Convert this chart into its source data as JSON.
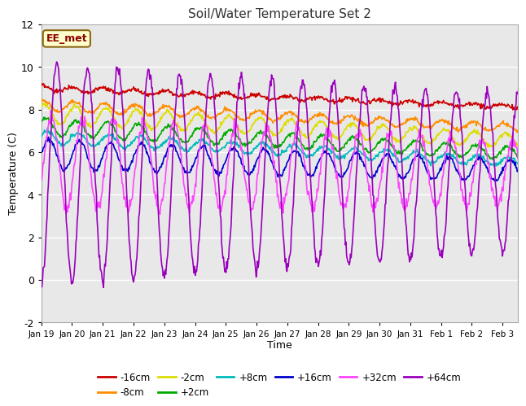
{
  "title": "Soil/Water Temperature Set 2",
  "xlabel": "Time",
  "ylabel": "Temperature (C)",
  "ylim": [
    -2,
    12
  ],
  "annotation_text": "EE_met",
  "annotation_box_color": "#ffffcc",
  "annotation_text_color": "#8b0000",
  "annotation_border_color": "#8b6914",
  "fig_facecolor": "#ffffff",
  "plot_facecolor": "#e8e8e8",
  "grid_color": "#ffffff",
  "series": [
    {
      "label": "-16cm",
      "color": "#cc0000",
      "base": 9.0,
      "amplitude": 0.12,
      "phase": 1.57,
      "trend": -0.9,
      "lw": 1.2
    },
    {
      "label": "-8cm",
      "color": "#ff8c00",
      "base": 8.2,
      "amplitude": 0.25,
      "phase": 1.2,
      "trend": -1.1,
      "lw": 1.2
    },
    {
      "label": "-2cm",
      "color": "#dddd00",
      "base": 7.8,
      "amplitude": 0.45,
      "phase": 0.9,
      "trend": -1.3,
      "lw": 1.2
    },
    {
      "label": "+2cm",
      "color": "#00aa00",
      "base": 7.2,
      "amplitude": 0.4,
      "phase": 0.6,
      "trend": -1.3,
      "lw": 1.2
    },
    {
      "label": "+8cm",
      "color": "#00bbbb",
      "base": 6.7,
      "amplitude": 0.3,
      "phase": 0.3,
      "trend": -1.2,
      "lw": 1.2
    },
    {
      "label": "+16cm",
      "color": "#0000cc",
      "base": 5.9,
      "amplitude": 0.7,
      "phase": 0.0,
      "trend": -0.8,
      "lw": 1.2
    },
    {
      "label": "+32cm",
      "color": "#ff44ff",
      "base": 5.5,
      "amplitude": 2.2,
      "phase": -0.5,
      "trend": -0.5,
      "lw": 1.2
    },
    {
      "label": "+64cm",
      "color": "#9900bb",
      "base": 5.0,
      "amplitude": 5.2,
      "phase": -1.57,
      "trend": 0.0,
      "lw": 1.2
    }
  ],
  "xtick_labels": [
    "Jan 19",
    "Jan 20",
    "Jan 21",
    "Jan 22",
    "Jan 23",
    "Jan 24",
    "Jan 25",
    "Jan 26",
    "Jan 27",
    "Jan 28",
    "Jan 29",
    "Jan 30",
    "Jan 31",
    "Feb 1",
    "Feb 2",
    "Feb 3"
  ],
  "ytick_values": [
    -2,
    0,
    2,
    4,
    6,
    8,
    10,
    12
  ]
}
